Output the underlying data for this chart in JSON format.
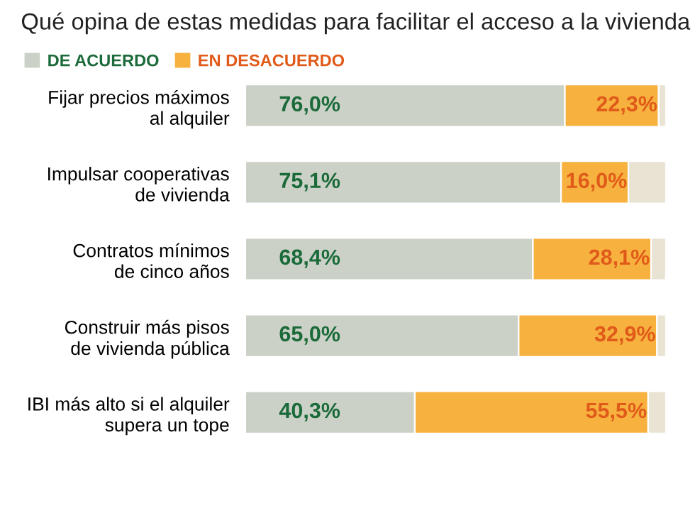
{
  "chart_data": {
    "type": "bar",
    "orientation": "horizontal",
    "stacked": true,
    "title": "Qué opina de estas medidas para facilitar el acceso a la vivienda",
    "legend": "top left",
    "categories": [
      "Fijar precios máximos\nal alquiler",
      "Impulsar cooperativas\nde vivienda",
      "Contratos mínimos\nde cinco años",
      "Construir más pisos\nde vivienda pública",
      "IBI más alto si el alquiler\nsupera un tope"
    ],
    "series": [
      {
        "name": "DE ACUERDO",
        "color": "#cbd1c6",
        "values": [
          76.0,
          75.1,
          68.4,
          65.0,
          40.3
        ],
        "value_labels": [
          "76,0%",
          "75,1%",
          "68,4%",
          "65,0%",
          "40,3%"
        ]
      },
      {
        "name": "EN DESACUERDO",
        "color": "#f7b13e",
        "values": [
          22.3,
          16.0,
          28.1,
          32.9,
          55.5
        ],
        "value_labels": [
          "22,3%",
          "16,0%",
          "28,1%",
          "32,9%",
          "55,5%"
        ]
      },
      {
        "color": "#e9e3d3",
        "values": [
          1.7,
          8.9,
          3.5,
          2.1,
          4.2
        ]
      }
    ]
  }
}
